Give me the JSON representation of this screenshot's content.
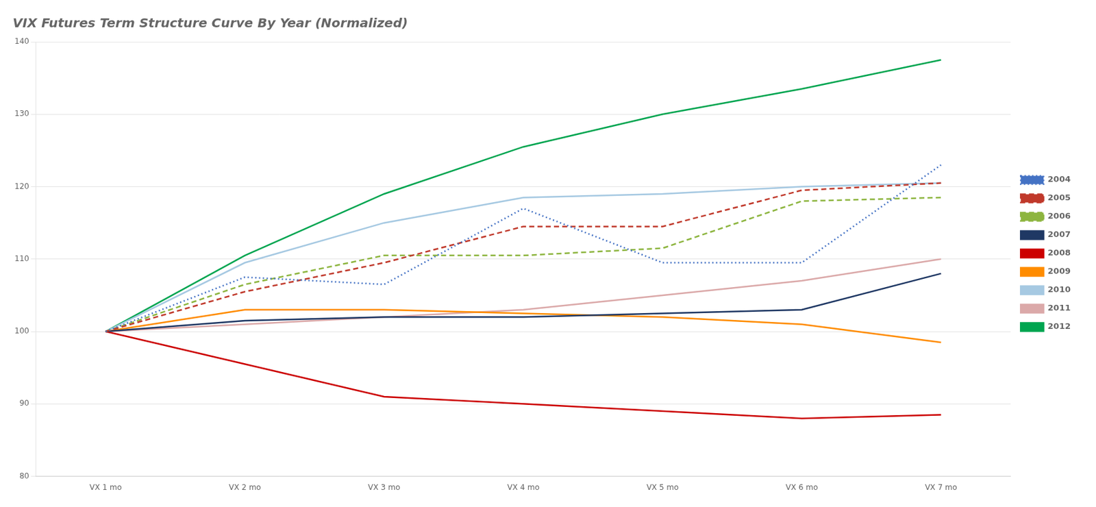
{
  "chart_data": {
    "type": "line",
    "title": "VIX Futures Term Structure Curve By Year (Normalized)",
    "categories": [
      "VX 1 mo",
      "VX 2 mo",
      "VX 3 mo",
      "VX 4 mo",
      "VX 5 mo",
      "VX 6 mo",
      "VX 7 mo"
    ],
    "series": [
      {
        "name": "2004",
        "color": "#4472C4",
        "line_style": "dotted",
        "values": [
          100,
          107.5,
          106.5,
          117.0,
          109.5,
          109.5,
          123.0
        ]
      },
      {
        "name": "2005",
        "color": "#C0392B",
        "line_style": "dashed",
        "values": [
          100,
          105.5,
          109.5,
          114.5,
          114.5,
          119.5,
          120.5
        ]
      },
      {
        "name": "2006",
        "color": "#8DB53F",
        "line_style": "dashed",
        "values": [
          100,
          106.5,
          110.5,
          110.5,
          111.5,
          118.0,
          118.5
        ]
      },
      {
        "name": "2007",
        "color": "#1F3864",
        "line_style": "solid",
        "values": [
          100,
          101.5,
          102.0,
          102.0,
          102.5,
          103.0,
          108.0
        ]
      },
      {
        "name": "2008",
        "color": "#CC0000",
        "line_style": "solid",
        "values": [
          100,
          95.5,
          91.0,
          90.0,
          89.0,
          88.0,
          88.5
        ]
      },
      {
        "name": "2009",
        "color": "#FF8C00",
        "line_style": "solid",
        "values": [
          100,
          103.0,
          103.0,
          102.5,
          102.0,
          101.0,
          98.5
        ]
      },
      {
        "name": "2010",
        "color": "#A6C9E2",
        "line_style": "solid",
        "values": [
          100,
          109.5,
          115.0,
          118.5,
          119.0,
          120.0,
          120.5
        ]
      },
      {
        "name": "2011",
        "color": "#DBA9A9",
        "line_style": "solid",
        "values": [
          100,
          101.0,
          102.0,
          103.0,
          105.0,
          107.0,
          110.0
        ]
      },
      {
        "name": "2012",
        "color": "#00A550",
        "line_style": "solid",
        "values": [
          100,
          110.5,
          119.0,
          125.5,
          130.0,
          133.5,
          137.5
        ]
      }
    ],
    "ylim": [
      80,
      140
    ],
    "yticks": [
      80,
      90,
      100,
      110,
      120,
      130,
      140
    ],
    "grid": "y",
    "legend": "right"
  }
}
